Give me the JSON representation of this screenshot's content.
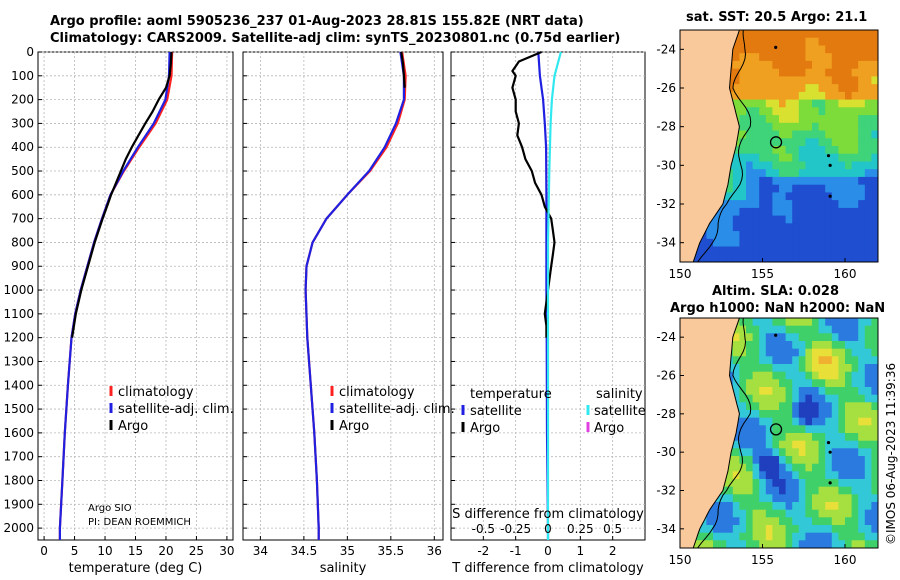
{
  "header": {
    "title_line1": "Argo profile: aoml 5905236_237 01-Aug-2023 28.81S 155.82E (NRT data)",
    "title_line2": "Climatology: CARS2009. Satellite-adj clim: synTS_20230801.nc (0.75d earlier)"
  },
  "footer": {
    "stamp": "©IMOS 06-Aug-2023 11:39:36"
  },
  "colors": {
    "climatology": "#ff2020",
    "satellite": "#2020e0",
    "argo": "#000000",
    "sal_satellite": "#30e8f0",
    "sal_argo": "#e040e0",
    "land": "#f9c89b",
    "grid": "#b8b8b8"
  },
  "chart_data": [
    {
      "id": "temperature",
      "type": "line",
      "xlabel": "temperature (deg C)",
      "ylabel": "",
      "xlim": [
        -1,
        31
      ],
      "ylim": [
        0,
        2050
      ],
      "xticks": [
        "0",
        "5",
        "10",
        "15",
        "20",
        "25",
        "30"
      ],
      "yticks": [
        "0",
        "100",
        "200",
        "300",
        "400",
        "500",
        "600",
        "700",
        "800",
        "900",
        "1000",
        "1100",
        "1200",
        "1300",
        "1400",
        "1500",
        "1600",
        "1700",
        "1800",
        "1900",
        "2000"
      ],
      "legend": [
        "climatology",
        "satellite-adj. clim.",
        "Argo"
      ],
      "annotation": [
        "Argo SIO",
        "PI: DEAN ROEMMICH"
      ],
      "series": [
        {
          "name": "climatology",
          "depth": [
            0,
            100,
            200,
            300,
            400,
            500,
            600,
            700,
            800,
            900,
            1000,
            1100,
            1200,
            1400,
            1600,
            1800,
            2000,
            2050
          ],
          "values": [
            21.0,
            20.9,
            20.2,
            18.3,
            15.6,
            13.1,
            10.9,
            9.5,
            8.2,
            7.1,
            6.0,
            5.1,
            4.5,
            3.9,
            3.4,
            3.0,
            2.6,
            2.6
          ]
        },
        {
          "name": "satellite-adj. clim.",
          "depth": [
            0,
            100,
            200,
            300,
            400,
            500,
            600,
            700,
            800,
            900,
            1000,
            1100,
            1200,
            1400,
            1600,
            1800,
            2000,
            2050
          ],
          "values": [
            20.6,
            20.5,
            19.9,
            18.0,
            15.4,
            13.0,
            10.9,
            9.5,
            8.2,
            7.1,
            6.0,
            5.1,
            4.5,
            3.9,
            3.4,
            3.0,
            2.6,
            2.6
          ]
        },
        {
          "name": "Argo",
          "depth": [
            0,
            50,
            100,
            150,
            200,
            250,
            300,
            350,
            400,
            450,
            500,
            550,
            600,
            650,
            700,
            800,
            900,
            1000,
            1100,
            1200
          ],
          "values": [
            20.9,
            20.8,
            20.6,
            20.0,
            18.8,
            17.8,
            16.6,
            15.5,
            14.4,
            13.4,
            12.6,
            11.8,
            11.0,
            10.3,
            9.6,
            8.3,
            7.2,
            6.1,
            5.2,
            4.6
          ]
        }
      ]
    },
    {
      "id": "salinity",
      "type": "line",
      "xlabel": "salinity",
      "xlim": [
        33.8,
        36.1
      ],
      "ylim": [
        0,
        2050
      ],
      "xticks": [
        "34",
        "34.5",
        "35",
        "35.5",
        "36"
      ],
      "legend": [
        "climatology",
        "satellite-adj. clim.",
        "Argo"
      ],
      "series": [
        {
          "name": "climatology",
          "depth": [
            0,
            100,
            200,
            300,
            400,
            500,
            600,
            700,
            800,
            900,
            1000,
            1200,
            1400,
            1600,
            1800,
            2000,
            2050
          ],
          "values": [
            35.63,
            35.67,
            35.66,
            35.58,
            35.45,
            35.26,
            35.0,
            34.76,
            34.6,
            34.53,
            34.52,
            34.54,
            34.58,
            34.62,
            34.65,
            34.67,
            34.67
          ]
        },
        {
          "name": "satellite-adj. clim.",
          "depth": [
            0,
            100,
            200,
            300,
            400,
            500,
            600,
            700,
            800,
            900,
            1000,
            1200,
            1400,
            1600,
            1800,
            2000,
            2050
          ],
          "values": [
            35.61,
            35.65,
            35.65,
            35.56,
            35.43,
            35.25,
            35.0,
            34.76,
            34.6,
            34.53,
            34.52,
            34.54,
            34.58,
            34.62,
            34.65,
            34.67,
            34.67
          ]
        },
        {
          "name": "Argo",
          "depth": [
            0,
            50,
            100,
            150
          ],
          "values": [
            35.62,
            35.64,
            35.65,
            35.66
          ]
        }
      ]
    },
    {
      "id": "difference",
      "type": "line",
      "xlabel": "T difference from climatology",
      "top_xlabel": "S difference from climatology",
      "xlim": [
        -3,
        3
      ],
      "ylim": [
        0,
        2050
      ],
      "xticks": [
        "-2",
        "-1",
        "0",
        "1",
        "2"
      ],
      "top_xticks": [
        "-0.5",
        "-0.25",
        "0",
        "0.25",
        "0.5"
      ],
      "legend_temperature": [
        "temperature",
        "satellite",
        "Argo"
      ],
      "legend_salinity": [
        "salinity",
        "satellite",
        "Argo"
      ],
      "series": [
        {
          "name": "temperature satellite",
          "depth": [
            0,
            100,
            200,
            300,
            400,
            600,
            800,
            1000,
            1200,
            1600,
            2000,
            2050
          ],
          "values": [
            -0.3,
            -0.25,
            -0.15,
            -0.1,
            -0.06,
            -0.05,
            -0.05,
            -0.05,
            -0.04,
            -0.03,
            0.0,
            0.0
          ]
        },
        {
          "name": "temperature Argo",
          "depth": [
            0,
            40,
            60,
            80,
            100,
            150,
            200,
            250,
            300,
            350,
            400,
            450,
            500,
            550,
            600,
            650,
            700,
            750,
            800,
            850,
            900,
            950,
            1000,
            1050,
            1100,
            1150,
            1200
          ],
          "values": [
            -0.2,
            -0.9,
            -1.0,
            -1.1,
            -1.0,
            -1.1,
            -1.0,
            -1.0,
            -0.9,
            -0.95,
            -0.8,
            -0.7,
            -0.5,
            -0.4,
            -0.2,
            -0.1,
            0.1,
            0.15,
            0.2,
            0.15,
            0.1,
            0.05,
            0.0,
            -0.05,
            -0.1,
            -0.05,
            -0.05
          ]
        },
        {
          "name": "salinity satellite",
          "depth": [
            0,
            100,
            200,
            300,
            500,
            800,
            1200,
            1600,
            2000,
            2050
          ],
          "values": [
            0.1,
            0.05,
            0.03,
            0.02,
            0.01,
            0.0,
            0.0,
            0.0,
            0.0,
            0.0
          ]
        }
      ]
    },
    {
      "id": "map_sst",
      "type": "heatmap",
      "title": "sat. SST: 20.5 Argo: 21.1",
      "xlim": [
        150,
        162
      ],
      "ylim": [
        -35,
        -23
      ],
      "xticks": [
        "150",
        "155",
        "160"
      ],
      "yticks": [
        "-24",
        "-26",
        "-28",
        "-30",
        "-32",
        "-34"
      ],
      "float_position": [
        155.82,
        -28.81
      ]
    },
    {
      "id": "map_sla",
      "type": "heatmap",
      "title_line1": "Altim. SLA: 0.028",
      "title_line2": "Argo h1000: NaN h2000: NaN",
      "xlim": [
        150,
        162
      ],
      "ylim": [
        -35,
        -23
      ],
      "xticks": [
        "150",
        "155",
        "160"
      ],
      "yticks": [
        "-24",
        "-26",
        "-28",
        "-30",
        "-32",
        "-34"
      ],
      "float_position": [
        155.82,
        -28.81
      ]
    }
  ]
}
